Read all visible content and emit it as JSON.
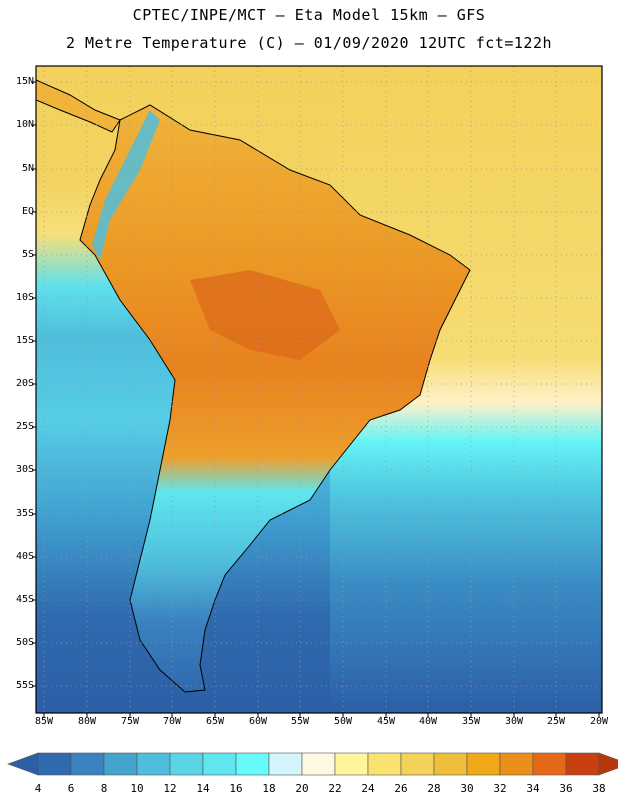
{
  "header": {
    "line1": "CPTEC/INPE/MCT –  Eta Model 15km – GFS",
    "line2": "2 Metre Temperature (C) – 01/09/2020 12UTC fct=122h"
  },
  "map": {
    "lat_labels": [
      "15N",
      "10N",
      "5N",
      "EQ",
      "5S",
      "10S",
      "15S",
      "20S",
      "25S",
      "30S",
      "35S",
      "40S",
      "45S",
      "50S",
      "55S"
    ],
    "lon_labels": [
      "85W",
      "80W",
      "75W",
      "70W",
      "65W",
      "60W",
      "55W",
      "50W",
      "45W",
      "40W",
      "35W",
      "30W",
      "25W",
      "20W"
    ]
  },
  "colorbar": {
    "labels": [
      "4",
      "6",
      "8",
      "10",
      "12",
      "14",
      "16",
      "18",
      "20",
      "22",
      "24",
      "26",
      "28",
      "30",
      "32",
      "34",
      "36",
      "38"
    ],
    "colors": [
      "#2f6aae",
      "#3a82c0",
      "#44a3cc",
      "#4fbedc",
      "#5ad4e4",
      "#5fe6ee",
      "#66fafa",
      "#d2f6fb",
      "#fff7e0",
      "#fff59a",
      "#f9e270",
      "#f4d25a",
      "#eebd3a",
      "#f0a818",
      "#ea8e1a",
      "#e46818",
      "#c84010"
    ]
  }
}
